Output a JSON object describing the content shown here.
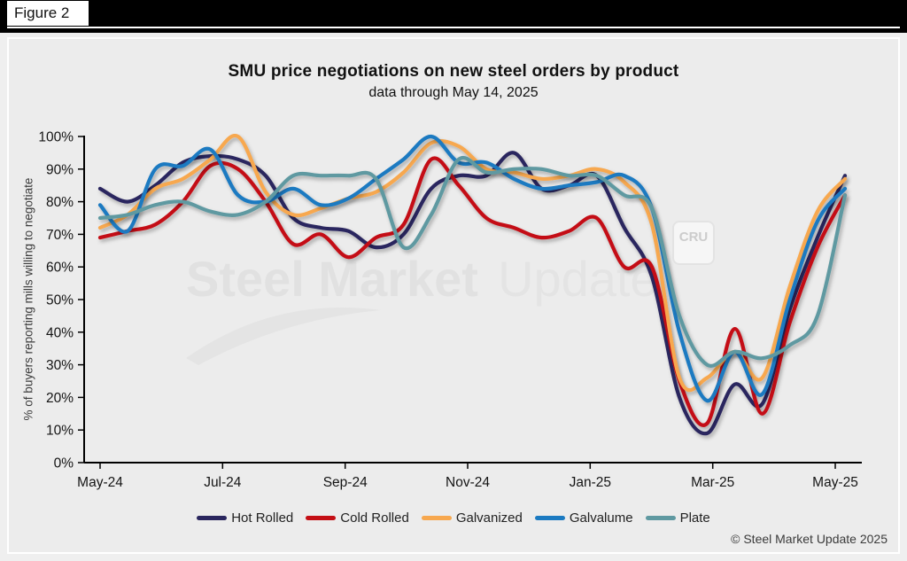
{
  "header": {
    "figure_label": "Figure 2"
  },
  "footer": {
    "copyright": "© Steel Market Update 2025"
  },
  "watermark": {
    "brand_bold": "Steel Market",
    "brand_light": "Update",
    "cru": "CRU"
  },
  "colors": {
    "hot_rolled": "#2a265e",
    "cold_rolled": "#c40f15",
    "galvanized": "#f7a84f",
    "galvalume": "#1b7ac1",
    "plate": "#5f99a1",
    "axis": "#000000",
    "panel_bg": "#ececec"
  },
  "chart_data": {
    "type": "line",
    "title": "SMU price negotiations on new steel orders by product",
    "subtitle": "data through May 14, 2025",
    "ylabel": "% of buyers reporting mills willing to negotiate",
    "xlabel": "",
    "ylim": [
      0,
      100
    ],
    "grid": false,
    "legend_position": "bottom",
    "y_tick_labels": [
      "0%",
      "10%",
      "20%",
      "30%",
      "40%",
      "50%",
      "60%",
      "70%",
      "80%",
      "90%",
      "100%"
    ],
    "x_tick_labels": [
      "May-24",
      "Jul-24",
      "Sep-24",
      "Nov-24",
      "Jan-25",
      "Mar-25",
      "May-25"
    ],
    "x": [
      "2024-05-01",
      "2024-05-15",
      "2024-05-29",
      "2024-06-12",
      "2024-06-26",
      "2024-07-10",
      "2024-07-24",
      "2024-08-07",
      "2024-08-21",
      "2024-09-04",
      "2024-09-18",
      "2024-10-02",
      "2024-10-16",
      "2024-10-30",
      "2024-11-13",
      "2024-11-27",
      "2024-12-11",
      "2024-12-25",
      "2025-01-08",
      "2025-01-22",
      "2025-02-05",
      "2025-02-19",
      "2025-03-05",
      "2025-03-19",
      "2025-04-02",
      "2025-04-16",
      "2025-04-30",
      "2025-05-14"
    ],
    "series": [
      {
        "name": "Hot Rolled",
        "color": "#2a265e",
        "values": [
          84,
          80,
          85,
          92,
          94,
          93,
          88,
          75,
          72,
          71,
          66,
          70,
          84,
          88,
          88,
          95,
          84,
          85,
          88,
          72,
          57,
          20,
          9,
          24,
          18,
          47,
          69,
          88
        ]
      },
      {
        "name": "Cold Rolled",
        "color": "#c40f15",
        "values": [
          69,
          71,
          73,
          80,
          91,
          90,
          80,
          67,
          70,
          63,
          69,
          73,
          93,
          85,
          75,
          72,
          69,
          71,
          75,
          60,
          60,
          25,
          12,
          41,
          15,
          43,
          66,
          82
        ]
      },
      {
        "name": "Galvanized",
        "color": "#f7a84f",
        "values": [
          72,
          76,
          84,
          87,
          93,
          100,
          83,
          76,
          78,
          81,
          83,
          89,
          98,
          97,
          90,
          89,
          87,
          88,
          90,
          86,
          73,
          26,
          26,
          34,
          26,
          54,
          77,
          87
        ]
      },
      {
        "name": "Galvalume",
        "color": "#1b7ac1",
        "values": [
          79,
          71,
          90,
          91,
          96,
          82,
          80,
          84,
          79,
          81,
          87,
          93,
          100,
          92,
          92,
          87,
          84,
          85,
          86,
          88,
          78,
          40,
          19,
          34,
          21,
          50,
          74,
          84
        ]
      },
      {
        "name": "Plate",
        "color": "#5f99a1",
        "values": [
          75,
          76,
          79,
          80,
          77,
          76,
          80,
          88,
          88,
          88,
          87,
          66,
          76,
          93,
          89,
          90,
          90,
          88,
          88,
          82,
          78,
          45,
          30,
          34,
          32,
          36,
          45,
          82
        ]
      }
    ]
  }
}
